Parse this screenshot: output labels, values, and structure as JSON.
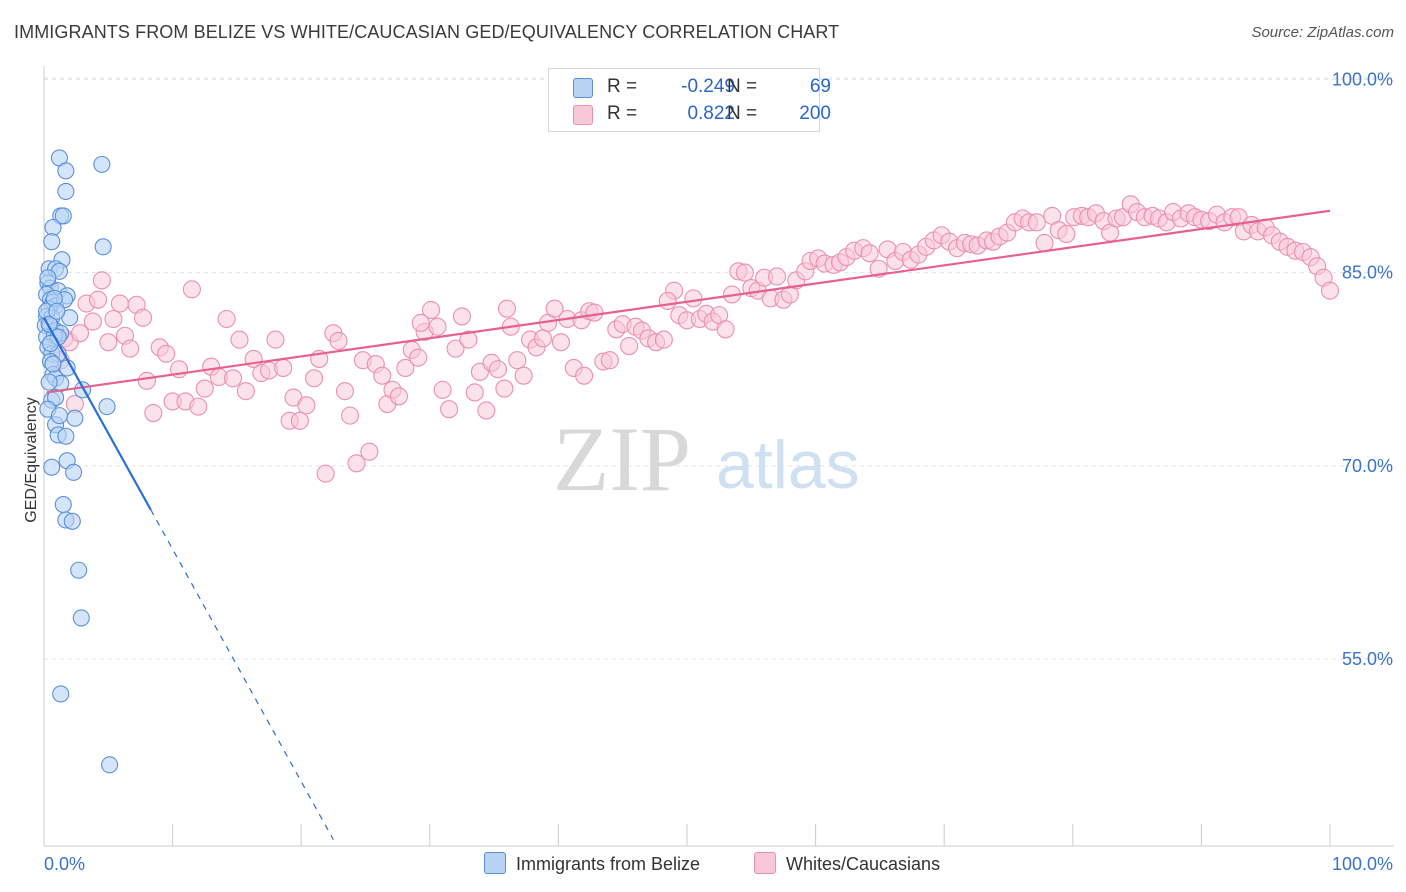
{
  "title": "IMMIGRANTS FROM BELIZE VS WHITE/CAUCASIAN GED/EQUIVALENCY CORRELATION CHART",
  "source": "Source: ZipAtlas.com",
  "watermark": {
    "zip": "ZIP",
    "atlas": "atlas"
  },
  "legend": {
    "r_label": "R =",
    "n_label": "N =",
    "belize": {
      "r": "-0.249",
      "n": "69"
    },
    "white": {
      "r": "0.822",
      "n": "200"
    }
  },
  "bottom_legend": {
    "belize_label": "Immigrants from Belize",
    "white_label": "Whites/Caucasians"
  },
  "colors": {
    "belize_fill": "#b8d4f5",
    "belize_stroke": "#5b90d8",
    "belize_line": "#2a6fd6",
    "white_fill": "#f8c8d8",
    "white_stroke": "#ec8fb0",
    "white_line": "#e8608e",
    "axis_label": "#3a72c8"
  },
  "chart_data": {
    "type": "scatter",
    "title": "IMMIGRANTS FROM BELIZE VS WHITE/CAUCASIAN GED/EQUIVALENCY CORRELATION CHART",
    "xlabel": "",
    "ylabel": "GED/Equivalency",
    "xlim": [
      0,
      100
    ],
    "ylim": [
      40.5,
      101.5
    ],
    "x_tick_labels": [
      "0.0%",
      "100.0%"
    ],
    "y_ticks": [
      100,
      85,
      70,
      55
    ],
    "y_tick_labels": [
      "100.0%",
      "85.0%",
      "70.0%",
      "55.0%"
    ],
    "series": [
      {
        "name": "Immigrants from Belize",
        "r": -0.249,
        "n": 69,
        "trend": {
          "x0": 0.0,
          "y0": 81.5,
          "x1": 8.3,
          "y1": 66.6,
          "dash_to_x": 22.5,
          "dash_to_y": 41.0
        },
        "points": [
          [
            1.2,
            93.9
          ],
          [
            4.5,
            93.4
          ],
          [
            1.7,
            92.9
          ],
          [
            1.7,
            91.3
          ],
          [
            1.3,
            89.4
          ],
          [
            1.5,
            89.4
          ],
          [
            0.7,
            88.5
          ],
          [
            0.6,
            87.4
          ],
          [
            4.6,
            87.0
          ],
          [
            1.4,
            86.0
          ],
          [
            0.4,
            85.3
          ],
          [
            0.9,
            85.3
          ],
          [
            1.2,
            85.1
          ],
          [
            0.3,
            84.2
          ],
          [
            0.5,
            83.8
          ],
          [
            1.1,
            83.6
          ],
          [
            1.8,
            83.2
          ],
          [
            0.2,
            83.3
          ],
          [
            0.5,
            82.9
          ],
          [
            0.7,
            82.7
          ],
          [
            0.9,
            82.4
          ],
          [
            1.6,
            82.9
          ],
          [
            0.4,
            82.2
          ],
          [
            0.2,
            81.6
          ],
          [
            0.6,
            81.5
          ],
          [
            0.1,
            80.9
          ],
          [
            0.5,
            80.9
          ],
          [
            0.9,
            80.5
          ],
          [
            1.3,
            80.3
          ],
          [
            0.2,
            80.0
          ],
          [
            0.8,
            80.1
          ],
          [
            2.0,
            81.5
          ],
          [
            0.3,
            79.2
          ],
          [
            0.6,
            78.7
          ],
          [
            1.1,
            78.7
          ],
          [
            0.5,
            78.1
          ],
          [
            1.8,
            77.6
          ],
          [
            0.7,
            77.1
          ],
          [
            0.9,
            76.8
          ],
          [
            1.3,
            76.4
          ],
          [
            3.0,
            75.9
          ],
          [
            0.6,
            75.1
          ],
          [
            4.9,
            74.6
          ],
          [
            2.4,
            73.7
          ],
          [
            0.9,
            73.2
          ],
          [
            1.1,
            72.4
          ],
          [
            1.7,
            72.3
          ],
          [
            1.8,
            70.4
          ],
          [
            0.6,
            69.9
          ],
          [
            2.3,
            69.5
          ],
          [
            1.5,
            67.0
          ],
          [
            1.7,
            65.8
          ],
          [
            2.2,
            65.7
          ],
          [
            2.7,
            61.9
          ],
          [
            2.9,
            58.2
          ],
          [
            1.3,
            52.3
          ],
          [
            5.1,
            46.8
          ],
          [
            0.2,
            82.0
          ],
          [
            0.4,
            81.0
          ],
          [
            0.3,
            84.6
          ],
          [
            0.8,
            83.0
          ],
          [
            1.0,
            82.0
          ],
          [
            1.1,
            80.0
          ],
          [
            0.5,
            79.5
          ],
          [
            0.7,
            77.9
          ],
          [
            0.4,
            76.5
          ],
          [
            0.9,
            75.3
          ],
          [
            0.3,
            74.4
          ],
          [
            1.2,
            73.9
          ]
        ]
      },
      {
        "name": "Whites/Caucasians",
        "r": 0.822,
        "n": 200,
        "trend": {
          "x0": 0.2,
          "y0": 75.7,
          "x1": 100.0,
          "y1": 89.8
        },
        "points": [
          [
            1.3,
            78.2
          ],
          [
            1.6,
            79.9
          ],
          [
            2.0,
            79.6
          ],
          [
            2.4,
            74.8
          ],
          [
            2.8,
            80.3
          ],
          [
            3.3,
            82.6
          ],
          [
            3.8,
            81.2
          ],
          [
            4.2,
            82.9
          ],
          [
            4.5,
            84.4
          ],
          [
            5.0,
            79.6
          ],
          [
            5.4,
            81.4
          ],
          [
            5.9,
            82.6
          ],
          [
            6.3,
            80.1
          ],
          [
            6.7,
            79.1
          ],
          [
            7.2,
            82.5
          ],
          [
            7.7,
            81.5
          ],
          [
            8.0,
            76.6
          ],
          [
            8.5,
            74.1
          ],
          [
            9.0,
            79.2
          ],
          [
            9.5,
            78.7
          ],
          [
            10.0,
            75.0
          ],
          [
            10.5,
            77.5
          ],
          [
            11.0,
            75.0
          ],
          [
            11.5,
            83.7
          ],
          [
            12.0,
            74.6
          ],
          [
            12.5,
            76.0
          ],
          [
            13.0,
            77.7
          ],
          [
            13.6,
            76.9
          ],
          [
            14.2,
            81.4
          ],
          [
            14.7,
            76.8
          ],
          [
            15.2,
            79.8
          ],
          [
            15.7,
            75.8
          ],
          [
            16.3,
            78.3
          ],
          [
            16.9,
            77.2
          ],
          [
            17.5,
            77.4
          ],
          [
            18.0,
            79.8
          ],
          [
            18.6,
            77.6
          ],
          [
            19.1,
            73.5
          ],
          [
            19.4,
            75.3
          ],
          [
            19.9,
            73.5
          ],
          [
            20.4,
            74.7
          ],
          [
            21.0,
            76.8
          ],
          [
            21.4,
            78.3
          ],
          [
            21.9,
            69.4
          ],
          [
            22.5,
            80.3
          ],
          [
            22.9,
            79.7
          ],
          [
            23.4,
            75.8
          ],
          [
            23.8,
            73.9
          ],
          [
            24.3,
            70.2
          ],
          [
            24.8,
            78.2
          ],
          [
            25.3,
            71.1
          ],
          [
            25.8,
            77.9
          ],
          [
            26.3,
            77.0
          ],
          [
            26.7,
            74.8
          ],
          [
            27.1,
            75.9
          ],
          [
            27.6,
            75.4
          ],
          [
            28.1,
            77.6
          ],
          [
            28.6,
            79.0
          ],
          [
            29.1,
            78.4
          ],
          [
            29.6,
            80.4
          ],
          [
            30.1,
            82.1
          ],
          [
            30.6,
            80.8
          ],
          [
            31.0,
            75.9
          ],
          [
            31.5,
            74.4
          ],
          [
            32.0,
            79.1
          ],
          [
            32.5,
            81.6
          ],
          [
            33.0,
            79.8
          ],
          [
            33.5,
            75.7
          ],
          [
            33.9,
            77.3
          ],
          [
            34.4,
            74.3
          ],
          [
            34.8,
            78.0
          ],
          [
            35.3,
            77.5
          ],
          [
            35.8,
            76.0
          ],
          [
            36.3,
            80.8
          ],
          [
            36.8,
            78.2
          ],
          [
            37.3,
            77.0
          ],
          [
            37.8,
            79.8
          ],
          [
            38.3,
            79.2
          ],
          [
            38.8,
            79.9
          ],
          [
            39.2,
            81.1
          ],
          [
            39.7,
            82.2
          ],
          [
            40.2,
            79.6
          ],
          [
            40.7,
            81.4
          ],
          [
            41.2,
            77.6
          ],
          [
            41.8,
            81.3
          ],
          [
            42.4,
            82.0
          ],
          [
            42.8,
            81.9
          ],
          [
            43.5,
            78.1
          ],
          [
            44.0,
            78.2
          ],
          [
            44.5,
            80.6
          ],
          [
            45.0,
            81.0
          ],
          [
            45.5,
            79.3
          ],
          [
            46.0,
            80.8
          ],
          [
            46.5,
            80.5
          ],
          [
            47.0,
            79.9
          ],
          [
            47.6,
            79.6
          ],
          [
            48.2,
            79.8
          ],
          [
            49.0,
            83.6
          ],
          [
            49.4,
            81.7
          ],
          [
            50.0,
            81.3
          ],
          [
            50.5,
            83.0
          ],
          [
            51.0,
            81.4
          ],
          [
            51.5,
            81.8
          ],
          [
            52.0,
            81.2
          ],
          [
            52.5,
            81.7
          ],
          [
            53.0,
            80.6
          ],
          [
            53.5,
            83.3
          ],
          [
            54.0,
            85.1
          ],
          [
            54.5,
            85.0
          ],
          [
            55.0,
            83.8
          ],
          [
            55.5,
            83.6
          ],
          [
            56.0,
            84.6
          ],
          [
            56.5,
            83.0
          ],
          [
            57.0,
            84.7
          ],
          [
            57.5,
            82.9
          ],
          [
            58.0,
            83.3
          ],
          [
            58.5,
            84.4
          ],
          [
            59.2,
            85.1
          ],
          [
            59.6,
            85.9
          ],
          [
            60.2,
            86.1
          ],
          [
            60.7,
            85.7
          ],
          [
            61.4,
            85.6
          ],
          [
            61.9,
            85.8
          ],
          [
            62.4,
            86.2
          ],
          [
            63.0,
            86.7
          ],
          [
            63.7,
            86.9
          ],
          [
            64.2,
            86.5
          ],
          [
            64.9,
            85.3
          ],
          [
            65.6,
            86.8
          ],
          [
            66.2,
            85.9
          ],
          [
            66.8,
            86.6
          ],
          [
            67.4,
            86.0
          ],
          [
            68.0,
            86.4
          ],
          [
            68.6,
            87.0
          ],
          [
            69.2,
            87.5
          ],
          [
            69.8,
            87.9
          ],
          [
            70.4,
            87.4
          ],
          [
            71.0,
            86.9
          ],
          [
            71.6,
            87.3
          ],
          [
            72.1,
            87.2
          ],
          [
            72.6,
            87.1
          ],
          [
            73.3,
            87.5
          ],
          [
            73.8,
            87.4
          ],
          [
            74.3,
            87.8
          ],
          [
            74.9,
            88.1
          ],
          [
            75.5,
            88.9
          ],
          [
            76.1,
            89.2
          ],
          [
            76.6,
            88.9
          ],
          [
            77.2,
            88.9
          ],
          [
            77.8,
            87.3
          ],
          [
            78.4,
            89.4
          ],
          [
            78.9,
            88.3
          ],
          [
            79.5,
            88.0
          ],
          [
            80.1,
            89.3
          ],
          [
            80.7,
            89.4
          ],
          [
            81.2,
            89.3
          ],
          [
            81.8,
            89.6
          ],
          [
            82.4,
            89.0
          ],
          [
            82.9,
            88.1
          ],
          [
            83.4,
            89.2
          ],
          [
            83.9,
            89.3
          ],
          [
            84.5,
            90.3
          ],
          [
            85.0,
            89.7
          ],
          [
            85.6,
            89.3
          ],
          [
            86.2,
            89.4
          ],
          [
            86.7,
            89.2
          ],
          [
            87.3,
            88.9
          ],
          [
            87.8,
            89.7
          ],
          [
            88.4,
            89.2
          ],
          [
            89.0,
            89.6
          ],
          [
            89.5,
            89.3
          ],
          [
            90.0,
            89.1
          ],
          [
            90.6,
            89.0
          ],
          [
            91.2,
            89.5
          ],
          [
            91.8,
            88.9
          ],
          [
            92.4,
            89.3
          ],
          [
            92.9,
            89.3
          ],
          [
            93.3,
            88.2
          ],
          [
            93.9,
            88.7
          ],
          [
            94.4,
            88.2
          ],
          [
            95.0,
            88.5
          ],
          [
            95.5,
            87.9
          ],
          [
            96.1,
            87.4
          ],
          [
            96.7,
            87.0
          ],
          [
            97.3,
            86.7
          ],
          [
            97.9,
            86.6
          ],
          [
            98.5,
            86.2
          ],
          [
            99.0,
            85.5
          ],
          [
            99.5,
            84.6
          ],
          [
            100.0,
            83.6
          ],
          [
            29.3,
            81.1
          ],
          [
            36.0,
            82.2
          ],
          [
            42.0,
            77.0
          ],
          [
            48.5,
            82.8
          ]
        ]
      }
    ]
  }
}
